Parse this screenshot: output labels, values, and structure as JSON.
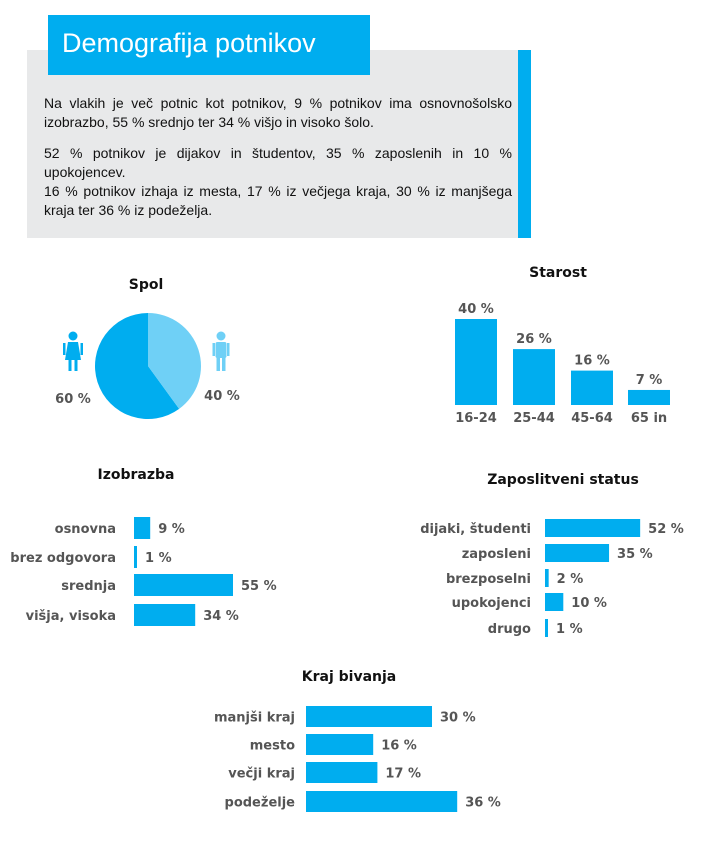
{
  "header": {
    "title": "Demografija potnikov",
    "paragraph_1": "Na vlakih je več potnic kot potnikov, 9 % potnikov ima osnovnošolsko izobrazbo, 55 % srednjo ter 34 % višjo in visoko šolo.",
    "paragraph_2": "52 % potnikov je dijakov in študentov, 35 % zaposlenih in 10 % upokojencev.",
    "paragraph_3": "16 % potnikov izhaja iz mesta, 17 % iz večjega kraja, 30 % iz manjšega kraja ter 36 % iz podeželja."
  },
  "colors": {
    "accent": "#00adef",
    "pie_light": "#6fd0f6",
    "header_bg": "#e8e9ea",
    "text_gray": "#555555"
  },
  "icons": [
    "woman-icon",
    "man-icon"
  ],
  "chart_data": [
    {
      "id": "spol",
      "type": "pie",
      "title": "Spol",
      "slices": [
        {
          "value": 60,
          "label": "60 %",
          "icon": "woman-icon"
        },
        {
          "value": 40,
          "label": "40 %",
          "icon": "man-icon"
        }
      ]
    },
    {
      "id": "starost",
      "type": "bar",
      "orientation": "vertical",
      "title": "Starost",
      "categories": [
        "16-24",
        "25-44",
        "45-64",
        "65 in"
      ],
      "values": [
        40,
        26,
        16,
        7
      ],
      "value_labels": [
        "40 %",
        "26 %",
        "16 %",
        "7 %"
      ]
    },
    {
      "id": "izobrazba",
      "type": "bar",
      "orientation": "horizontal",
      "title": "Izobrazba",
      "categories": [
        "osnovna",
        "brez odgovora",
        "srednja",
        "višja, visoka"
      ],
      "values": [
        9,
        1,
        55,
        34
      ],
      "value_labels": [
        "9 %",
        "1 %",
        "55 %",
        "34 %"
      ]
    },
    {
      "id": "zaposlitveni",
      "type": "bar",
      "orientation": "horizontal",
      "title": "Zaposlitveni status",
      "categories": [
        "dijaki, študenti",
        "zaposleni",
        "brezposelni",
        "upokojenci",
        "drugo"
      ],
      "values": [
        52,
        35,
        2,
        10,
        1
      ],
      "value_labels": [
        "52 %",
        "35 %",
        "2 %",
        "10 %",
        "1 %"
      ]
    },
    {
      "id": "kraj",
      "type": "bar",
      "orientation": "horizontal",
      "title": "Kraj bivanja",
      "categories": [
        "manjši kraj",
        "mesto",
        "večji kraj",
        "podeželje"
      ],
      "values": [
        30,
        16,
        17,
        36
      ],
      "value_labels": [
        "30 %",
        "16 %",
        "17 %",
        "36 %"
      ]
    }
  ]
}
